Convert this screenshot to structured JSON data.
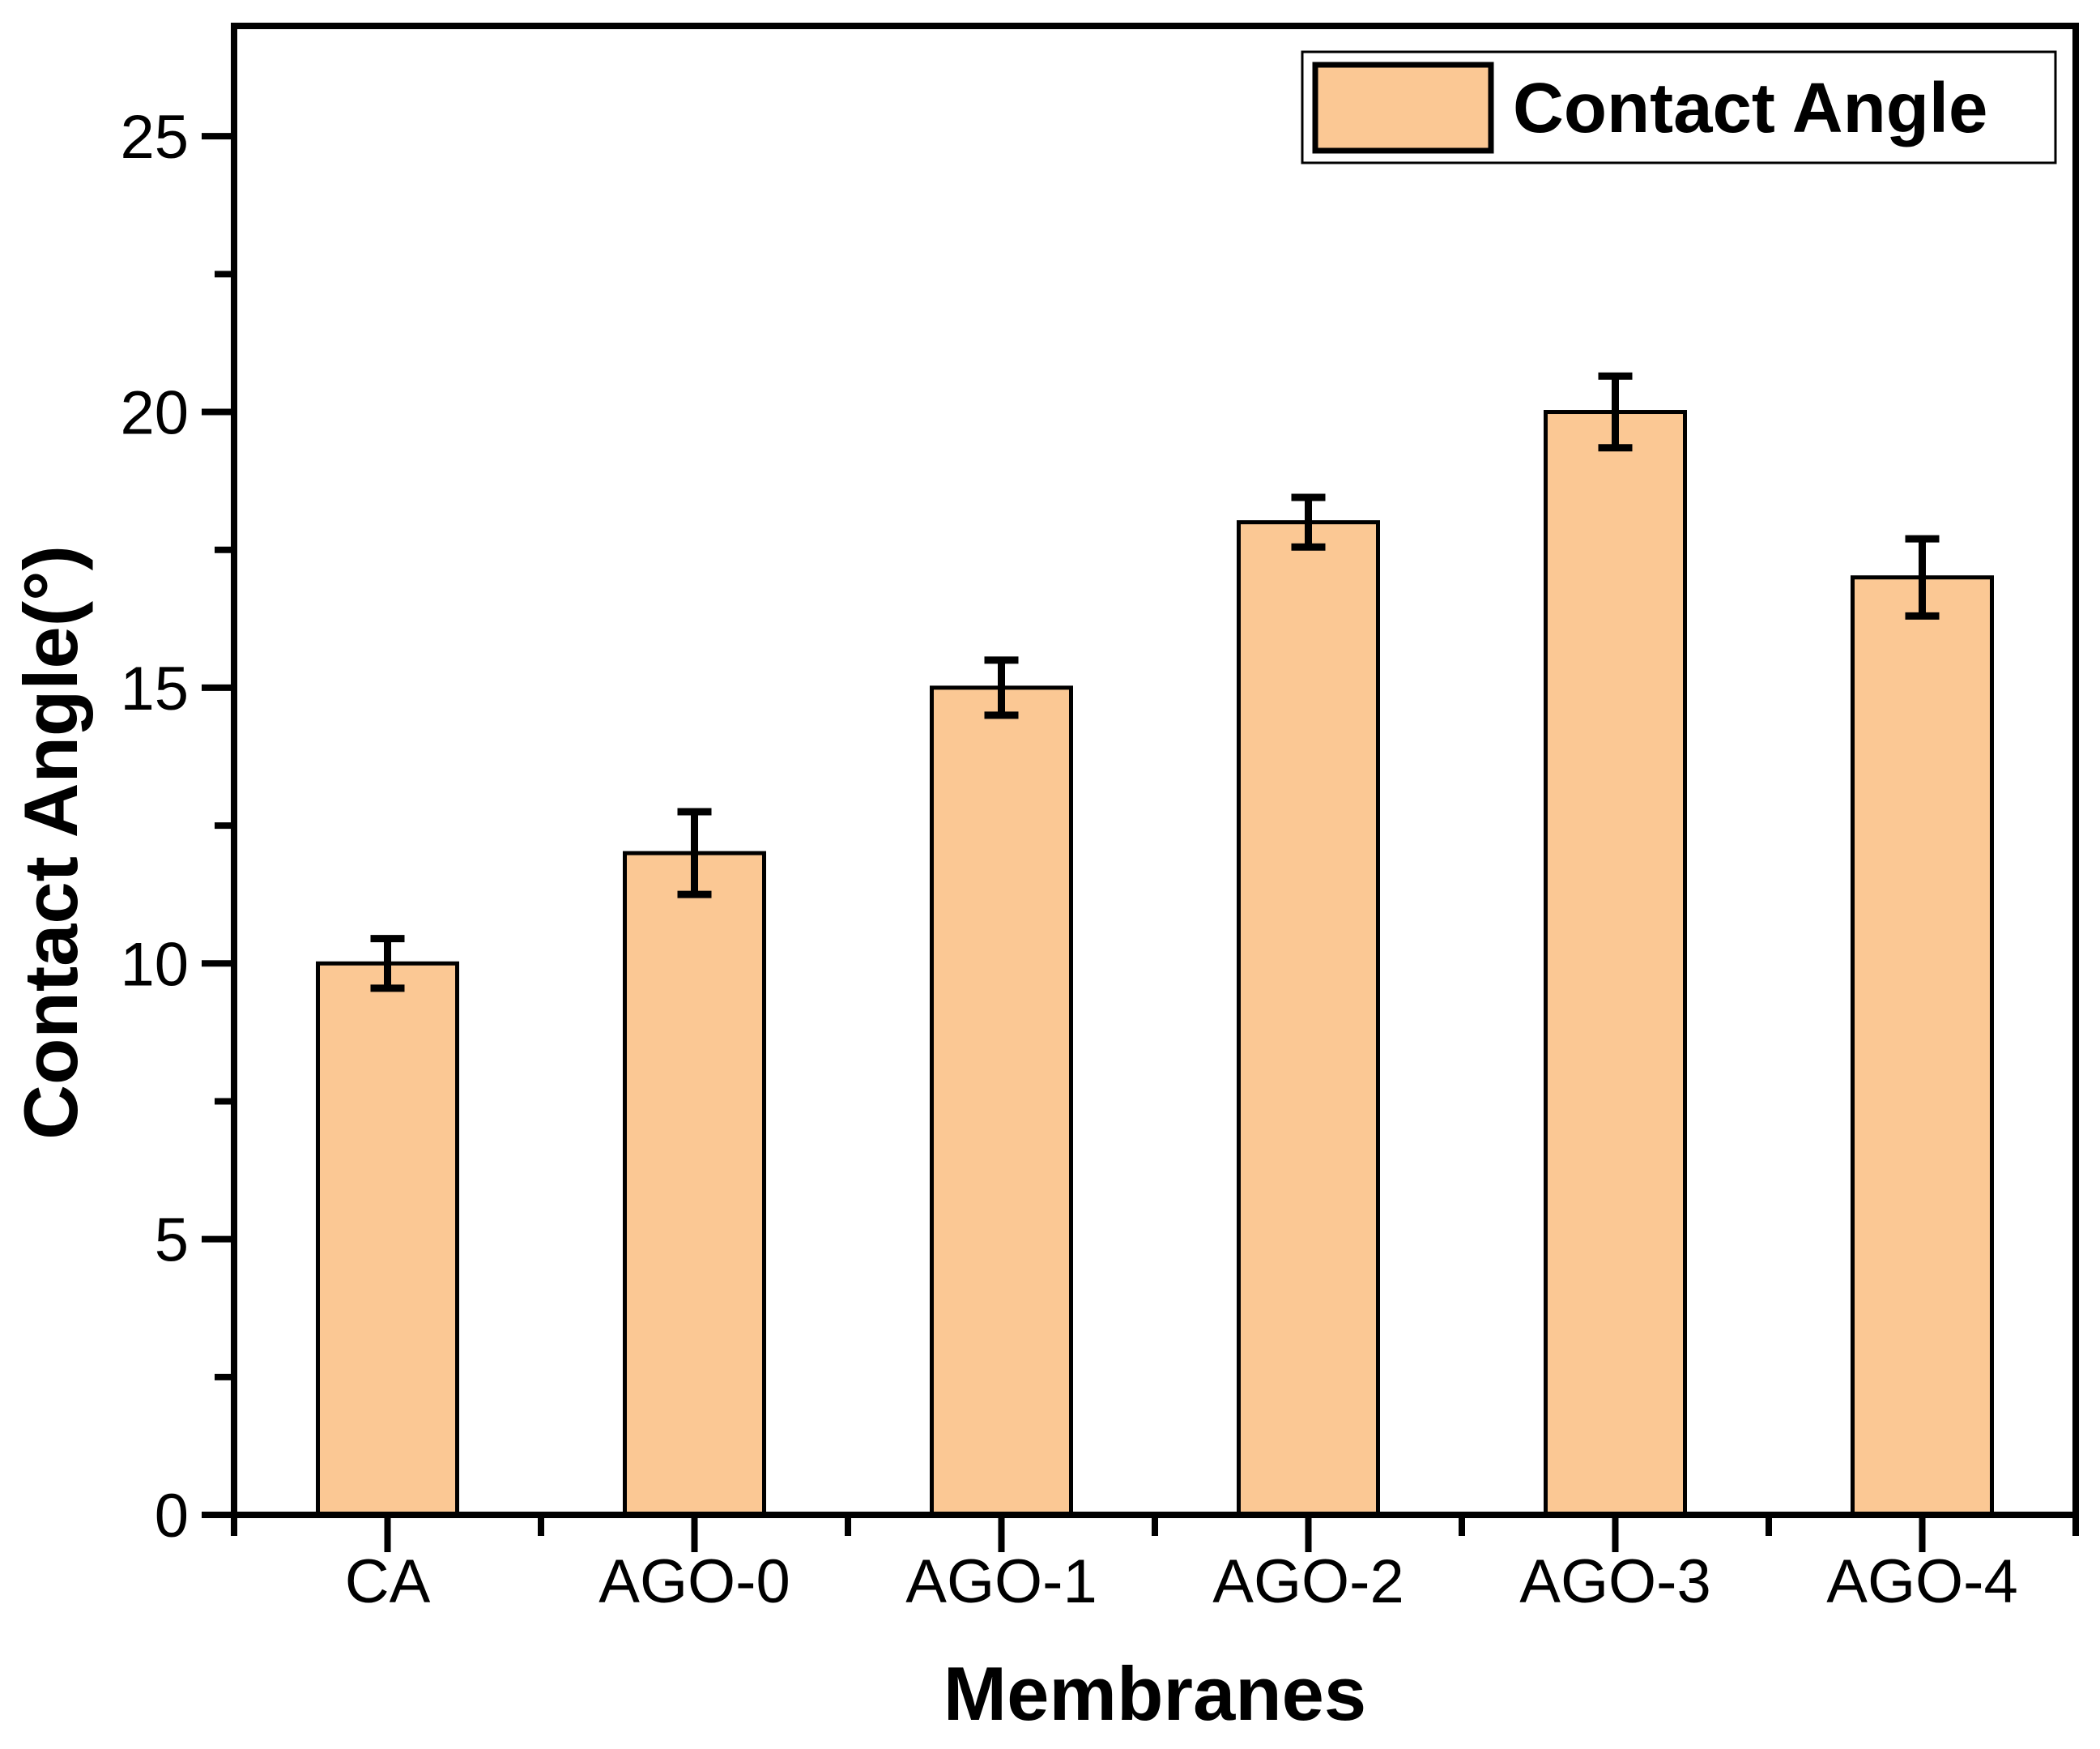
{
  "figure_type": "scientific-bar-chart",
  "chart_data": {
    "type": "bar",
    "categories": [
      "CA",
      "AGO-0",
      "AGO-1",
      "AGO-2",
      "AGO-3",
      "AGO-4"
    ],
    "series": [
      {
        "name": "Contact Angle",
        "values": [
          10,
          12,
          15,
          18,
          20,
          17
        ],
        "errors": [
          0.45,
          0.75,
          0.5,
          0.45,
          0.65,
          0.7
        ]
      }
    ],
    "title": "",
    "xlabel": "Membranes",
    "ylabel": "Contact Angle(°)",
    "ylim": [
      0,
      27
    ],
    "yticks_major": [
      0,
      5,
      10,
      15,
      20,
      25
    ],
    "ytick_labels": [
      "0",
      "5",
      "10",
      "15",
      "20",
      "25"
    ],
    "yticks_minor": [
      2.5,
      7.5,
      12.5,
      17.5,
      22.5
    ],
    "grid": false,
    "bar_fill": "#FBC894",
    "bar_stroke": "#000000",
    "error_color": "#000000",
    "frame_color": "#000000",
    "background": "#FFFFFF",
    "legend": {
      "position": "top-right",
      "entries": [
        {
          "label": "Contact Angle",
          "swatch_fill": "#FBC894",
          "swatch_stroke": "#000000"
        }
      ]
    }
  }
}
